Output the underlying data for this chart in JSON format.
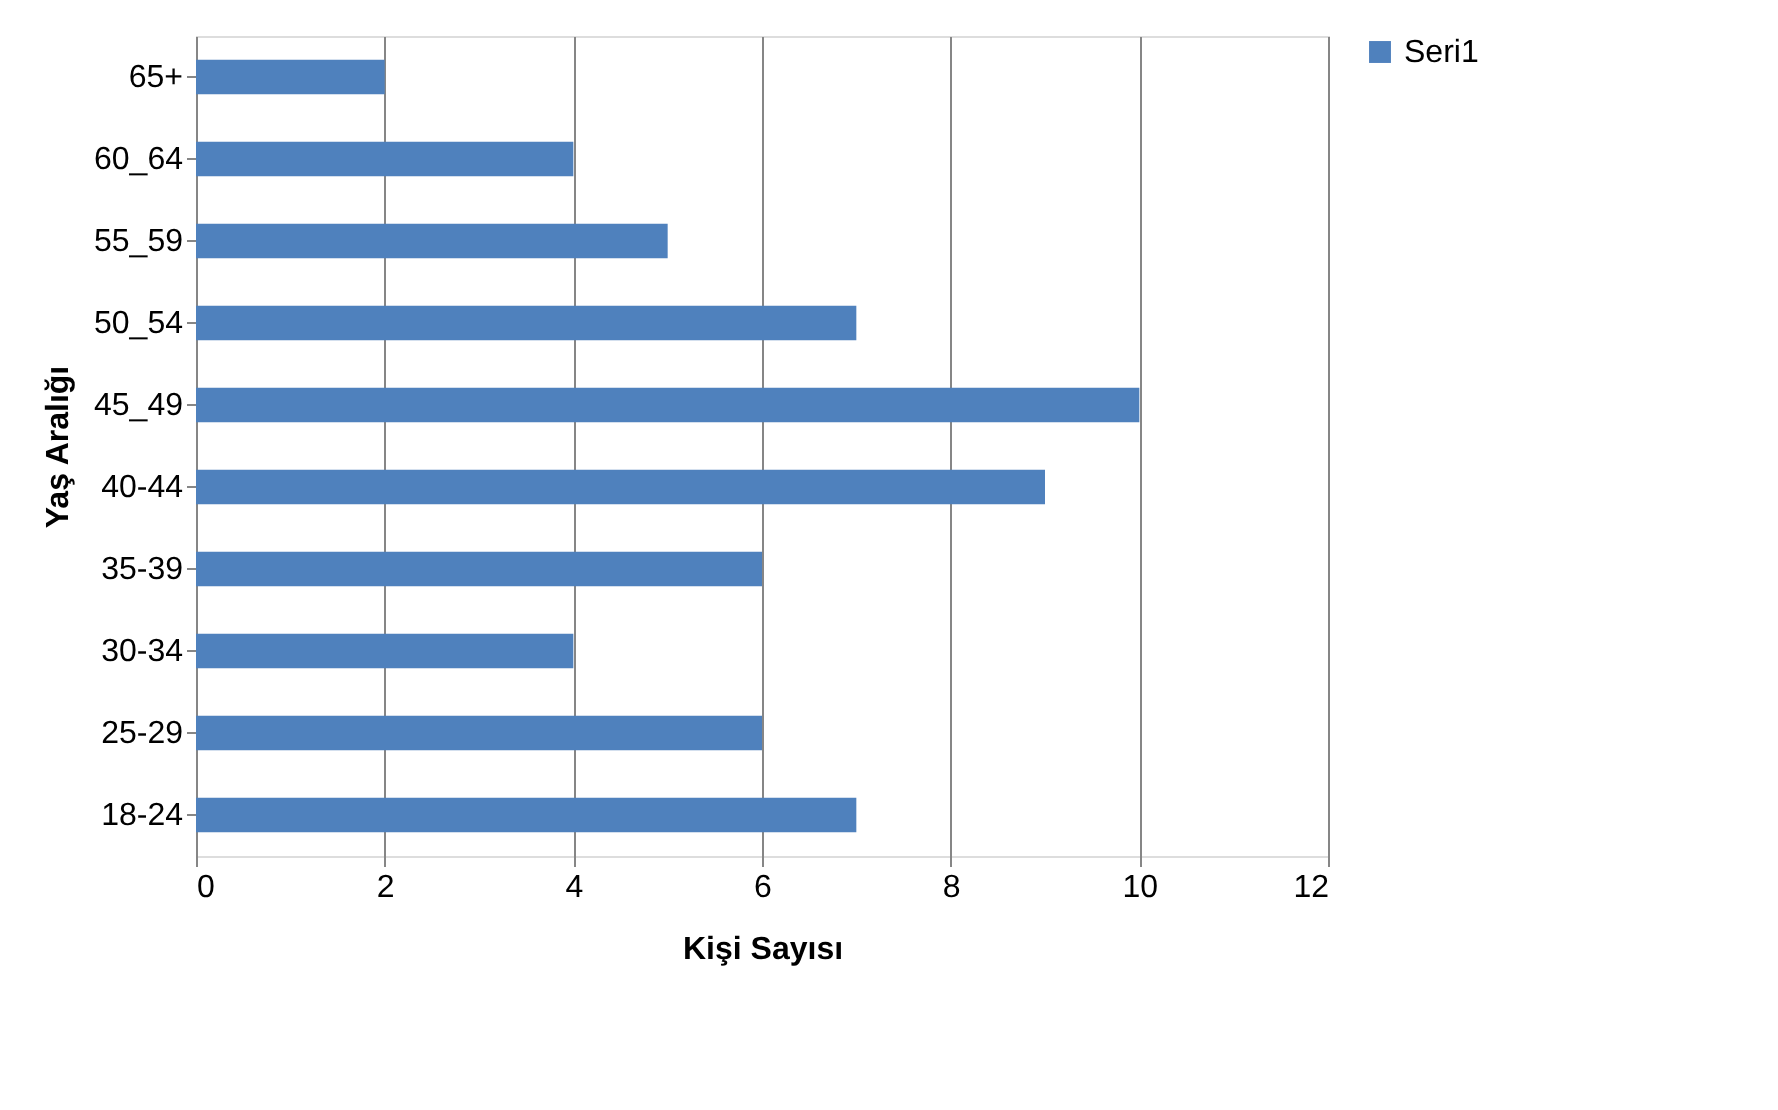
{
  "chart_data": {
    "type": "bar",
    "orientation": "horizontal",
    "xlabel": "Kişi Sayısı",
    "ylabel": "Yaş Aralığı",
    "categories": [
      "65+",
      "60_64",
      "55_59",
      "50_54",
      "45_49",
      "40-44",
      "35-39",
      "30-34",
      "25-29",
      "18-24"
    ],
    "series": [
      {
        "name": "Seri1",
        "color": "#4f81bd",
        "values": [
          2,
          4,
          5,
          7,
          10,
          9,
          6,
          4,
          6,
          7
        ]
      }
    ],
    "xlim": [
      0,
      12
    ],
    "xticks": [
      0,
      2,
      4,
      6,
      8,
      10,
      12
    ],
    "grid": "x",
    "legend": "right"
  }
}
